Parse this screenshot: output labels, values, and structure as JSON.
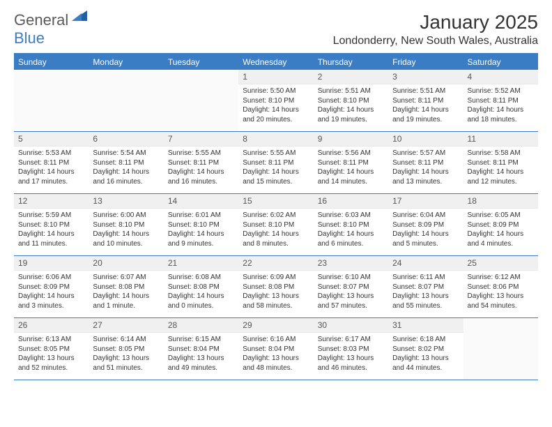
{
  "logo": {
    "textA": "General",
    "textB": "Blue"
  },
  "header": {
    "title": "January 2025",
    "location": "Londonderry, New South Wales, Australia"
  },
  "colors": {
    "accent": "#3b7dc4",
    "dayHeaderBg": "#f0f0f0",
    "textDark": "#333",
    "textMuted": "#555"
  },
  "weekdays": [
    "Sunday",
    "Monday",
    "Tuesday",
    "Wednesday",
    "Thursday",
    "Friday",
    "Saturday"
  ],
  "weeks": [
    [
      null,
      null,
      null,
      {
        "n": "1",
        "sr": "Sunrise: 5:50 AM",
        "ss": "Sunset: 8:10 PM",
        "d1": "Daylight: 14 hours",
        "d2": "and 20 minutes."
      },
      {
        "n": "2",
        "sr": "Sunrise: 5:51 AM",
        "ss": "Sunset: 8:10 PM",
        "d1": "Daylight: 14 hours",
        "d2": "and 19 minutes."
      },
      {
        "n": "3",
        "sr": "Sunrise: 5:51 AM",
        "ss": "Sunset: 8:11 PM",
        "d1": "Daylight: 14 hours",
        "d2": "and 19 minutes."
      },
      {
        "n": "4",
        "sr": "Sunrise: 5:52 AM",
        "ss": "Sunset: 8:11 PM",
        "d1": "Daylight: 14 hours",
        "d2": "and 18 minutes."
      }
    ],
    [
      {
        "n": "5",
        "sr": "Sunrise: 5:53 AM",
        "ss": "Sunset: 8:11 PM",
        "d1": "Daylight: 14 hours",
        "d2": "and 17 minutes."
      },
      {
        "n": "6",
        "sr": "Sunrise: 5:54 AM",
        "ss": "Sunset: 8:11 PM",
        "d1": "Daylight: 14 hours",
        "d2": "and 16 minutes."
      },
      {
        "n": "7",
        "sr": "Sunrise: 5:55 AM",
        "ss": "Sunset: 8:11 PM",
        "d1": "Daylight: 14 hours",
        "d2": "and 16 minutes."
      },
      {
        "n": "8",
        "sr": "Sunrise: 5:55 AM",
        "ss": "Sunset: 8:11 PM",
        "d1": "Daylight: 14 hours",
        "d2": "and 15 minutes."
      },
      {
        "n": "9",
        "sr": "Sunrise: 5:56 AM",
        "ss": "Sunset: 8:11 PM",
        "d1": "Daylight: 14 hours",
        "d2": "and 14 minutes."
      },
      {
        "n": "10",
        "sr": "Sunrise: 5:57 AM",
        "ss": "Sunset: 8:11 PM",
        "d1": "Daylight: 14 hours",
        "d2": "and 13 minutes."
      },
      {
        "n": "11",
        "sr": "Sunrise: 5:58 AM",
        "ss": "Sunset: 8:11 PM",
        "d1": "Daylight: 14 hours",
        "d2": "and 12 minutes."
      }
    ],
    [
      {
        "n": "12",
        "sr": "Sunrise: 5:59 AM",
        "ss": "Sunset: 8:10 PM",
        "d1": "Daylight: 14 hours",
        "d2": "and 11 minutes."
      },
      {
        "n": "13",
        "sr": "Sunrise: 6:00 AM",
        "ss": "Sunset: 8:10 PM",
        "d1": "Daylight: 14 hours",
        "d2": "and 10 minutes."
      },
      {
        "n": "14",
        "sr": "Sunrise: 6:01 AM",
        "ss": "Sunset: 8:10 PM",
        "d1": "Daylight: 14 hours",
        "d2": "and 9 minutes."
      },
      {
        "n": "15",
        "sr": "Sunrise: 6:02 AM",
        "ss": "Sunset: 8:10 PM",
        "d1": "Daylight: 14 hours",
        "d2": "and 8 minutes."
      },
      {
        "n": "16",
        "sr": "Sunrise: 6:03 AM",
        "ss": "Sunset: 8:10 PM",
        "d1": "Daylight: 14 hours",
        "d2": "and 6 minutes."
      },
      {
        "n": "17",
        "sr": "Sunrise: 6:04 AM",
        "ss": "Sunset: 8:09 PM",
        "d1": "Daylight: 14 hours",
        "d2": "and 5 minutes."
      },
      {
        "n": "18",
        "sr": "Sunrise: 6:05 AM",
        "ss": "Sunset: 8:09 PM",
        "d1": "Daylight: 14 hours",
        "d2": "and 4 minutes."
      }
    ],
    [
      {
        "n": "19",
        "sr": "Sunrise: 6:06 AM",
        "ss": "Sunset: 8:09 PM",
        "d1": "Daylight: 14 hours",
        "d2": "and 3 minutes."
      },
      {
        "n": "20",
        "sr": "Sunrise: 6:07 AM",
        "ss": "Sunset: 8:08 PM",
        "d1": "Daylight: 14 hours",
        "d2": "and 1 minute."
      },
      {
        "n": "21",
        "sr": "Sunrise: 6:08 AM",
        "ss": "Sunset: 8:08 PM",
        "d1": "Daylight: 14 hours",
        "d2": "and 0 minutes."
      },
      {
        "n": "22",
        "sr": "Sunrise: 6:09 AM",
        "ss": "Sunset: 8:08 PM",
        "d1": "Daylight: 13 hours",
        "d2": "and 58 minutes."
      },
      {
        "n": "23",
        "sr": "Sunrise: 6:10 AM",
        "ss": "Sunset: 8:07 PM",
        "d1": "Daylight: 13 hours",
        "d2": "and 57 minutes."
      },
      {
        "n": "24",
        "sr": "Sunrise: 6:11 AM",
        "ss": "Sunset: 8:07 PM",
        "d1": "Daylight: 13 hours",
        "d2": "and 55 minutes."
      },
      {
        "n": "25",
        "sr": "Sunrise: 6:12 AM",
        "ss": "Sunset: 8:06 PM",
        "d1": "Daylight: 13 hours",
        "d2": "and 54 minutes."
      }
    ],
    [
      {
        "n": "26",
        "sr": "Sunrise: 6:13 AM",
        "ss": "Sunset: 8:05 PM",
        "d1": "Daylight: 13 hours",
        "d2": "and 52 minutes."
      },
      {
        "n": "27",
        "sr": "Sunrise: 6:14 AM",
        "ss": "Sunset: 8:05 PM",
        "d1": "Daylight: 13 hours",
        "d2": "and 51 minutes."
      },
      {
        "n": "28",
        "sr": "Sunrise: 6:15 AM",
        "ss": "Sunset: 8:04 PM",
        "d1": "Daylight: 13 hours",
        "d2": "and 49 minutes."
      },
      {
        "n": "29",
        "sr": "Sunrise: 6:16 AM",
        "ss": "Sunset: 8:04 PM",
        "d1": "Daylight: 13 hours",
        "d2": "and 48 minutes."
      },
      {
        "n": "30",
        "sr": "Sunrise: 6:17 AM",
        "ss": "Sunset: 8:03 PM",
        "d1": "Daylight: 13 hours",
        "d2": "and 46 minutes."
      },
      {
        "n": "31",
        "sr": "Sunrise: 6:18 AM",
        "ss": "Sunset: 8:02 PM",
        "d1": "Daylight: 13 hours",
        "d2": "and 44 minutes."
      },
      null
    ]
  ]
}
